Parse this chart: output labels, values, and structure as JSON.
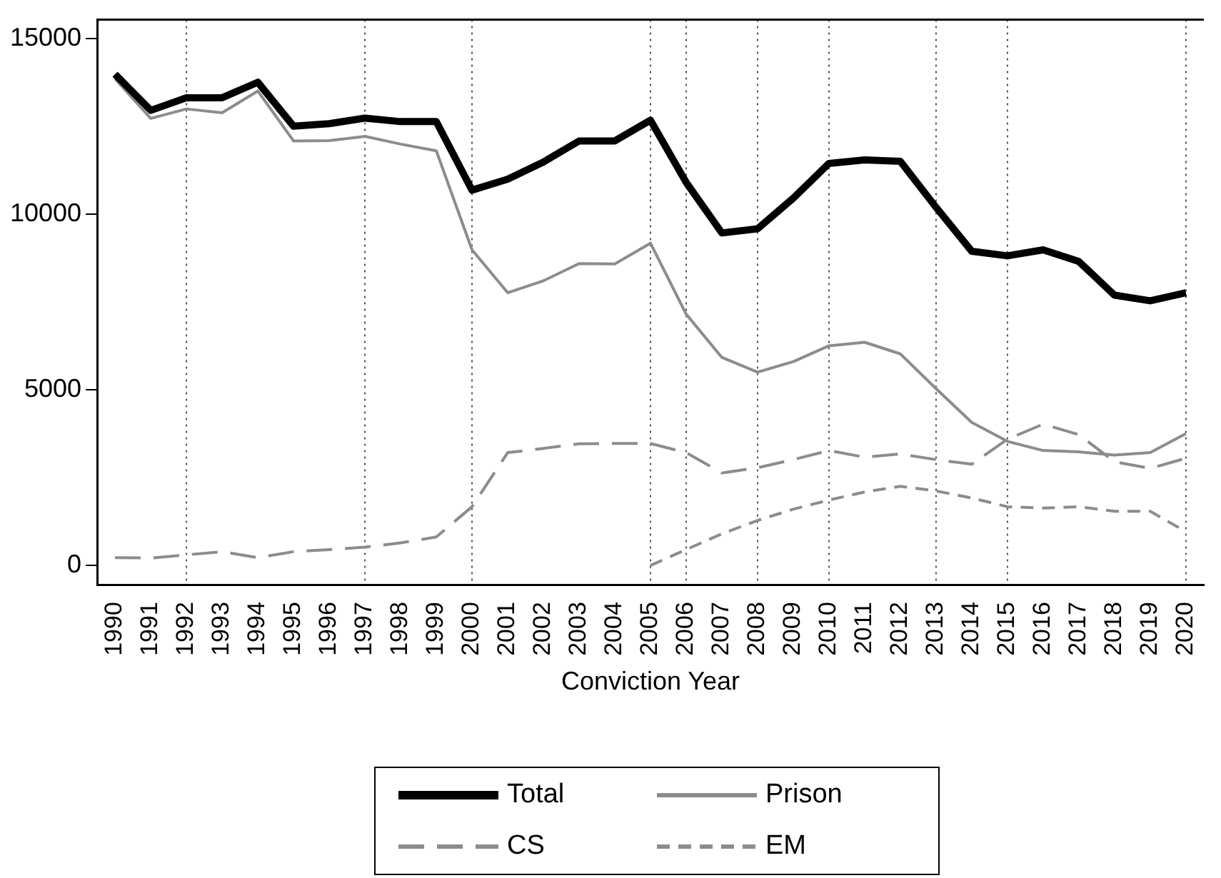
{
  "chart_data": {
    "type": "line",
    "xlabel": "Conviction Year",
    "categories": [
      "1990",
      "1991",
      "1992",
      "1993",
      "1994",
      "1995",
      "1996",
      "1997",
      "1998",
      "1999",
      "2000",
      "2001",
      "2002",
      "2003",
      "2004",
      "2005",
      "2006",
      "2007",
      "2008",
      "2009",
      "2010",
      "2011",
      "2012",
      "2013",
      "2014",
      "2015",
      "2016",
      "2017",
      "2018",
      "2019",
      "2020"
    ],
    "series": [
      {
        "name": "Total",
        "color": "#000000",
        "line_style": "solid",
        "values": [
          13980,
          12950,
          13310,
          13310,
          13750,
          12500,
          12570,
          12730,
          12630,
          12630,
          10680,
          10990,
          11480,
          12080,
          12080,
          12670,
          10900,
          9460,
          9580,
          10450,
          11440,
          11540,
          11500,
          10190,
          8940,
          8810,
          8980,
          8650,
          7690,
          7530,
          7760
        ]
      },
      {
        "name": "Prison",
        "color": "#8c8c8c",
        "line_style": "solid",
        "values": [
          13850,
          12720,
          12990,
          12880,
          13500,
          12080,
          12090,
          12210,
          11990,
          11800,
          8980,
          7760,
          8100,
          8590,
          8580,
          9170,
          7150,
          5920,
          5500,
          5800,
          6250,
          6350,
          6020,
          5030,
          4070,
          3530,
          3270,
          3230,
          3140,
          3210,
          3750
        ]
      },
      {
        "name": "CS",
        "color": "#8c8c8c",
        "line_style": "dashed",
        "values": [
          220,
          210,
          300,
          390,
          220,
          390,
          450,
          520,
          640,
          810,
          1670,
          3210,
          3330,
          3460,
          3470,
          3470,
          3210,
          2630,
          2780,
          3010,
          3270,
          3080,
          3170,
          3010,
          2880,
          3590,
          4020,
          3720,
          2950,
          2760,
          3050
        ]
      },
      {
        "name": "EM",
        "color": "#8c8c8c",
        "line_style": "dashed",
        "values": [
          null,
          null,
          null,
          null,
          null,
          null,
          null,
          null,
          null,
          null,
          null,
          null,
          null,
          null,
          null,
          0,
          450,
          900,
          1280,
          1600,
          1860,
          2090,
          2250,
          2120,
          1920,
          1670,
          1630,
          1670,
          1540,
          1540,
          960
        ]
      }
    ],
    "ylim": [
      -550,
      15530
    ],
    "yticks": [
      0,
      5000,
      10000,
      15000
    ],
    "grid": false,
    "legend": "bottom",
    "marker": "none",
    "ref_lines": [
      {
        "axis": "x",
        "value": "1992",
        "color": "#555555",
        "line_style": "dotted"
      },
      {
        "axis": "x",
        "value": "1997",
        "color": "#555555",
        "line_style": "dotted"
      },
      {
        "axis": "x",
        "value": "2000",
        "color": "#555555",
        "line_style": "dotted"
      },
      {
        "axis": "x",
        "value": "2005",
        "color": "#555555",
        "line_style": "dotted"
      },
      {
        "axis": "x",
        "value": "2006",
        "color": "#555555",
        "line_style": "dotted"
      },
      {
        "axis": "x",
        "value": "2008",
        "color": "#555555",
        "line_style": "dotted"
      },
      {
        "axis": "x",
        "value": "2010",
        "color": "#555555",
        "line_style": "dotted"
      },
      {
        "axis": "x",
        "value": "2013",
        "color": "#555555",
        "line_style": "dotted"
      },
      {
        "axis": "x",
        "value": "2015",
        "color": "#555555",
        "line_style": "dotted"
      },
      {
        "axis": "x",
        "value": "2020",
        "color": "#555555",
        "line_style": "dotted"
      }
    ]
  }
}
